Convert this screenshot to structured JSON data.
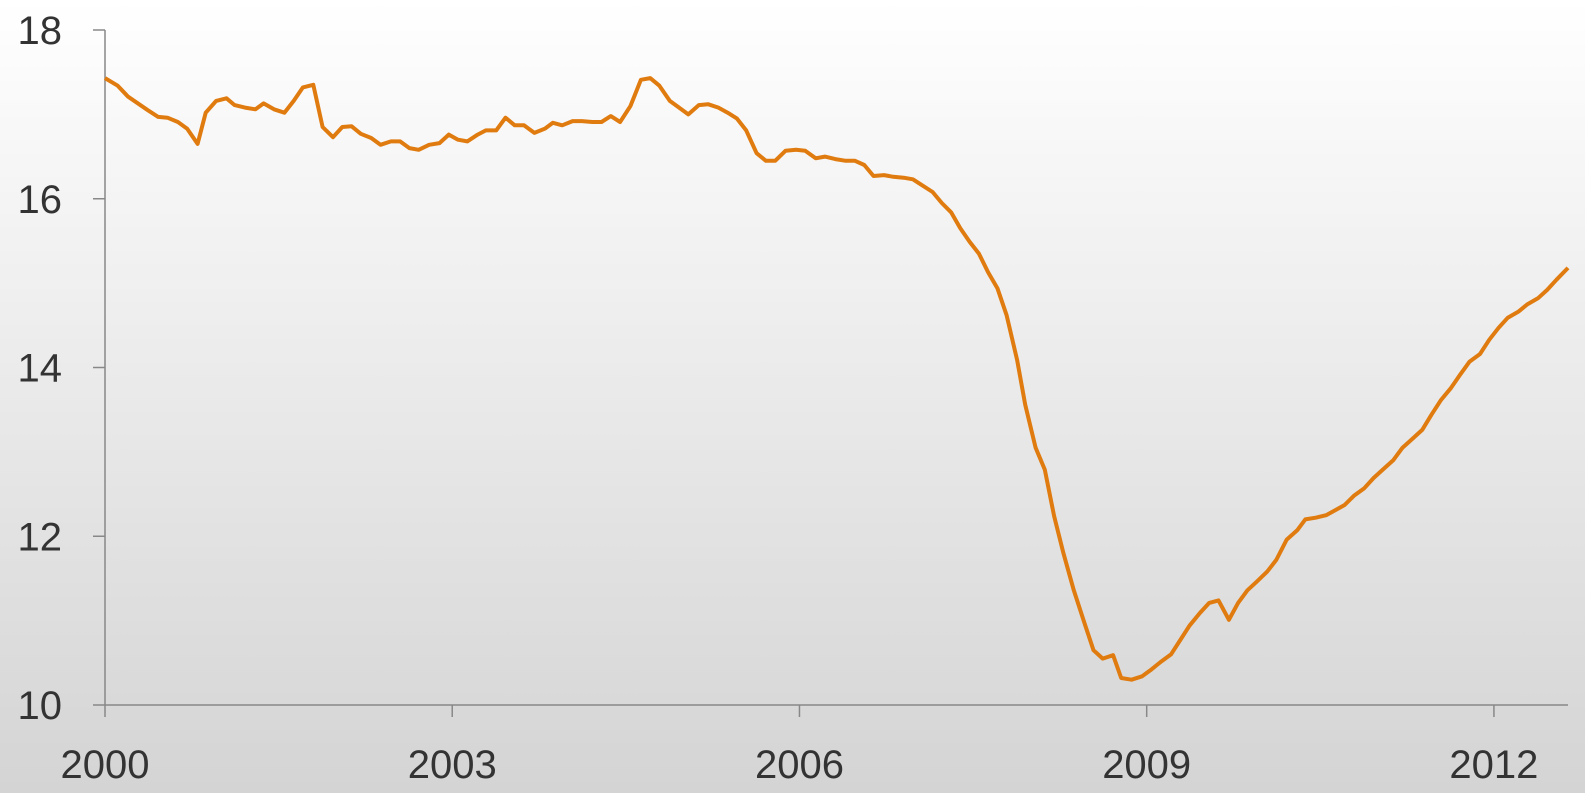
{
  "chart_data": {
    "type": "line",
    "x": [
      2000.0,
      2000.11,
      2000.2,
      2000.37,
      2000.46,
      2000.54,
      2000.63,
      2000.71,
      2000.8,
      2000.87,
      2000.96,
      2001.05,
      2001.12,
      2001.21,
      2001.3,
      2001.37,
      2001.46,
      2001.55,
      2001.63,
      2001.71,
      2001.8,
      2001.88,
      2001.97,
      2002.05,
      2002.13,
      2002.21,
      2002.3,
      2002.38,
      2002.47,
      2002.55,
      2002.63,
      2002.71,
      2002.8,
      2002.89,
      2002.97,
      2003.05,
      2003.13,
      2003.22,
      2003.29,
      2003.38,
      2003.46,
      2003.54,
      2003.62,
      2003.71,
      2003.8,
      2003.87,
      2003.95,
      2004.04,
      2004.12,
      2004.21,
      2004.29,
      2004.37,
      2004.45,
      2004.54,
      2004.63,
      2004.71,
      2004.79,
      2004.88,
      2004.95,
      2005.04,
      2005.13,
      2005.21,
      2005.3,
      2005.38,
      2005.46,
      2005.54,
      2005.63,
      2005.71,
      2005.79,
      2005.88,
      2005.97,
      2006.05,
      2006.14,
      2006.22,
      2006.31,
      2006.4,
      2006.48,
      2006.56,
      2006.64,
      2006.73,
      2006.81,
      2006.9,
      2006.98,
      2007.06,
      2007.15,
      2007.23,
      2007.31,
      2007.39,
      2007.47,
      2007.55,
      2007.63,
      2007.71,
      2007.79,
      2007.88,
      2007.95,
      2008.04,
      2008.12,
      2008.2,
      2008.28,
      2008.37,
      2008.46,
      2008.54,
      2008.62,
      2008.71,
      2008.78,
      2008.87,
      2008.96,
      2009.03,
      2009.12,
      2009.21,
      2009.29,
      2009.37,
      2009.46,
      2009.54,
      2009.62,
      2009.71,
      2009.79,
      2009.87,
      2009.95,
      2010.04,
      2010.12,
      2010.21,
      2010.3,
      2010.37,
      2010.46,
      2010.55,
      2010.63,
      2010.71,
      2010.79,
      2010.88,
      2010.96,
      2011.04,
      2011.13,
      2011.21,
      2011.3,
      2011.38,
      2011.46,
      2011.54,
      2011.63,
      2011.71,
      2011.79,
      2011.88,
      2011.96,
      2012.04,
      2012.12,
      2012.21,
      2012.29,
      2012.38,
      2012.46,
      2012.54,
      2012.64
    ],
    "series": [
      {
        "color": "#e07b10",
        "values": [
          17.43,
          17.34,
          17.21,
          17.05,
          16.97,
          16.96,
          16.91,
          16.83,
          16.65,
          17.02,
          17.16,
          17.19,
          17.11,
          17.08,
          17.06,
          17.13,
          17.06,
          17.02,
          17.16,
          17.32,
          17.35,
          16.85,
          16.73,
          16.85,
          16.86,
          16.77,
          16.72,
          16.64,
          16.68,
          16.68,
          16.6,
          16.58,
          16.64,
          16.66,
          16.76,
          16.7,
          16.68,
          16.76,
          16.81,
          16.81,
          16.96,
          16.87,
          16.87,
          16.78,
          16.83,
          16.9,
          16.87,
          16.92,
          16.92,
          16.91,
          16.91,
          16.98,
          16.91,
          17.1,
          17.41,
          17.43,
          17.34,
          17.16,
          17.09,
          17.0,
          17.11,
          17.12,
          17.08,
          17.02,
          16.95,
          16.81,
          16.54,
          16.45,
          16.45,
          16.57,
          16.58,
          16.57,
          16.48,
          16.5,
          16.47,
          16.45,
          16.45,
          16.4,
          16.27,
          16.28,
          16.26,
          16.25,
          16.23,
          16.16,
          16.08,
          15.95,
          15.84,
          15.65,
          15.49,
          15.35,
          15.13,
          14.94,
          14.62,
          14.09,
          13.56,
          13.05,
          12.79,
          12.24,
          11.8,
          11.36,
          10.98,
          10.65,
          10.55,
          10.59,
          10.32,
          10.3,
          10.34,
          10.41,
          10.51,
          10.6,
          10.77,
          10.94,
          11.09,
          11.21,
          11.24,
          11.01,
          11.21,
          11.36,
          11.46,
          11.58,
          11.72,
          11.96,
          12.07,
          12.2,
          12.22,
          12.25,
          12.31,
          12.37,
          12.48,
          12.57,
          12.69,
          12.79,
          12.9,
          13.05,
          13.16,
          13.26,
          13.44,
          13.61,
          13.76,
          13.92,
          14.07,
          14.16,
          14.33,
          14.47,
          14.59,
          14.66,
          14.75,
          14.82,
          14.92,
          15.04,
          15.18
        ]
      }
    ],
    "xlim": [
      2000,
      2012.64
    ],
    "xticks": [
      2000,
      2003,
      2006,
      2009,
      2012
    ],
    "ylim": [
      10,
      18
    ],
    "yticks": [
      10,
      12,
      14,
      16,
      18
    ],
    "grid": false
  }
}
